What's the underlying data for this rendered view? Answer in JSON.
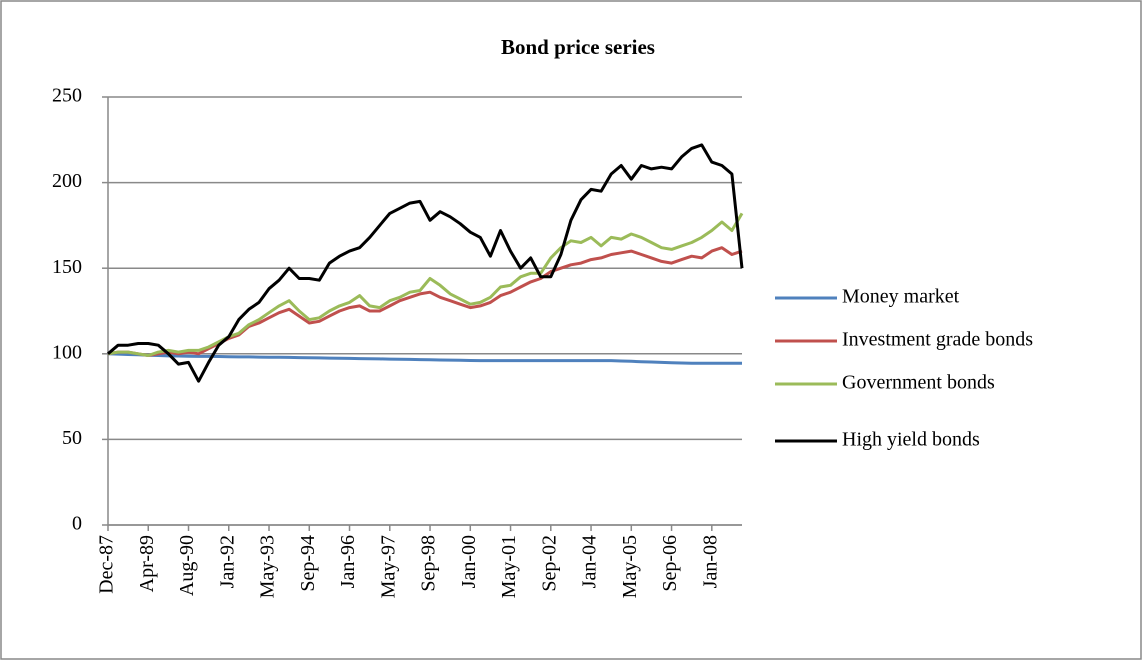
{
  "chart_data": {
    "type": "line",
    "title": "Bond price series",
    "categories": [
      "Dec-87",
      null,
      null,
      null,
      "Apr-89",
      null,
      null,
      null,
      "Aug-90",
      null,
      null,
      null,
      "Jan-92",
      null,
      null,
      null,
      "May-93",
      null,
      null,
      null,
      "Sep-94",
      null,
      null,
      null,
      "Jan-96",
      null,
      null,
      null,
      "May-97",
      null,
      null,
      null,
      "Sep-98",
      null,
      null,
      null,
      "Jan-00",
      null,
      null,
      null,
      "May-01",
      null,
      null,
      null,
      "Sep-02",
      null,
      null,
      null,
      "Jan-04",
      null,
      null,
      null,
      "May-05",
      null,
      null,
      null,
      "Sep-06",
      null,
      null,
      null,
      "Jan-08",
      null,
      null,
      null
    ],
    "series": [
      {
        "name": "Money market",
        "color": "#4f81bd",
        "values": [
          100,
          99.8,
          99.6,
          99.4,
          99.2,
          99,
          98.8,
          98.7,
          98.6,
          98.5,
          98.5,
          98.4,
          98.3,
          98.2,
          98.2,
          98.1,
          98,
          98,
          97.9,
          97.8,
          97.7,
          97.6,
          97.5,
          97.4,
          97.3,
          97.2,
          97.1,
          97,
          96.9,
          96.8,
          96.7,
          96.6,
          96.5,
          96.4,
          96.3,
          96.2,
          96.1,
          96,
          96,
          96,
          96,
          96,
          96,
          96,
          96,
          96,
          96,
          96,
          96,
          96,
          96,
          95.8,
          95.6,
          95.4,
          95.2,
          95,
          94.8,
          94.6,
          94.5,
          94.5,
          94.5,
          94.5,
          94.5,
          94.5
        ]
      },
      {
        "name": "Investment grade bonds",
        "color": "#c0504d",
        "values": [
          100,
          101,
          101,
          100,
          99,
          100,
          101,
          100,
          101,
          100,
          103,
          106,
          109,
          111,
          116,
          118,
          121,
          124,
          126,
          122,
          118,
          119,
          122,
          125,
          127,
          128,
          125,
          125,
          128,
          131,
          133,
          135,
          136,
          133,
          131,
          129,
          127,
          128,
          130,
          134,
          136,
          139,
          142,
          144,
          148,
          150,
          152,
          153,
          155,
          156,
          158,
          159,
          160,
          158,
          156,
          154,
          153,
          155,
          157,
          156,
          160,
          162,
          158,
          160
        ]
      },
      {
        "name": "Government bonds",
        "color": "#9bbb59",
        "values": [
          100,
          101,
          101,
          100,
          99,
          101,
          102,
          101,
          102,
          102,
          104,
          107,
          110,
          112,
          117,
          120,
          124,
          128,
          131,
          125,
          120,
          121,
          125,
          128,
          130,
          134,
          128,
          127,
          131,
          133,
          136,
          137,
          144,
          140,
          135,
          132,
          129,
          130,
          133,
          139,
          140,
          145,
          147,
          147,
          156,
          162,
          166,
          165,
          168,
          163,
          168,
          167,
          170,
          168,
          165,
          162,
          161,
          163,
          165,
          168,
          172,
          177,
          172,
          182
        ]
      },
      {
        "name": "High yield bonds",
        "color": "#000000",
        "values": [
          100,
          105,
          105,
          106,
          106,
          105,
          100,
          94,
          95,
          84,
          95,
          105,
          110,
          120,
          126,
          130,
          138,
          143,
          150,
          144,
          144,
          143,
          153,
          157,
          160,
          162,
          168,
          175,
          182,
          185,
          188,
          189,
          178,
          183,
          180,
          176,
          171,
          168,
          157,
          172,
          160,
          150,
          156,
          145,
          145,
          158,
          178,
          190,
          196,
          195,
          205,
          210,
          202,
          210,
          208,
          209,
          208,
          215,
          220,
          222,
          212,
          210,
          205,
          150
        ]
      }
    ],
    "ylim": [
      0,
      250
    ],
    "yticks": [
      0,
      50,
      100,
      150,
      200,
      250
    ],
    "grid": true,
    "legend": "right"
  }
}
